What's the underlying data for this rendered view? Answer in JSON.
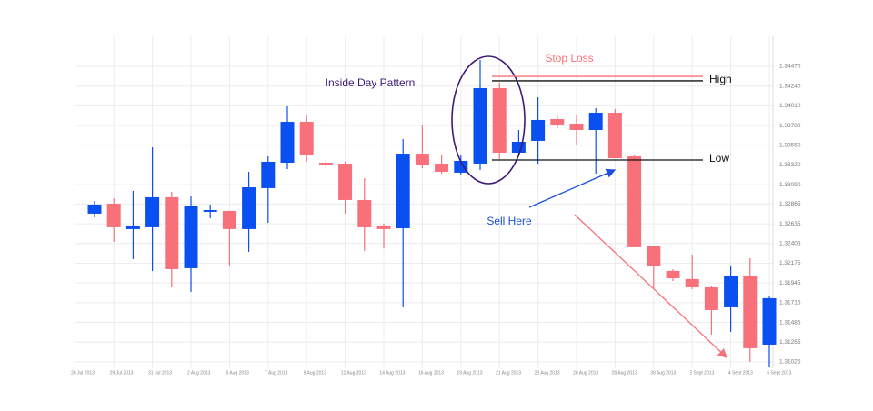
{
  "chart_data": {
    "type": "candlestick",
    "up_color": "#0a4ff0",
    "down_color": "#f7707a",
    "grid": true,
    "ylim": [
      1.3095,
      1.3482
    ],
    "yticks": [
      {
        "value": 1.3447,
        "label": "1.34470"
      },
      {
        "value": 1.3424,
        "label": "1.34240"
      },
      {
        "value": 1.3401,
        "label": "1.34010"
      },
      {
        "value": 1.3378,
        "label": "1.33780"
      },
      {
        "value": 1.3355,
        "label": "1.33550"
      },
      {
        "value": 1.3332,
        "label": "1.33320"
      },
      {
        "value": 1.3309,
        "label": "1.33090"
      },
      {
        "value": 1.32865,
        "label": "1.32865"
      },
      {
        "value": 1.32635,
        "label": "1.32635"
      },
      {
        "value": 1.32405,
        "label": "1.32405"
      },
      {
        "value": 1.32175,
        "label": "1.32175"
      },
      {
        "value": 1.31945,
        "label": "1.31945"
      },
      {
        "value": 1.31715,
        "label": "1.31715"
      },
      {
        "value": 1.31485,
        "label": "1.31485"
      },
      {
        "value": 1.31255,
        "label": "1.31255"
      },
      {
        "value": 1.31025,
        "label": "1.31025"
      }
    ],
    "x_labels": [
      "26 Jul 2013",
      "29 Jul 2013",
      "31 Jul 2013",
      "2 Aug 2013",
      "6 Aug 2013",
      "7 Aug 2013",
      "9 Aug 2013",
      "12 Aug 2013",
      "14 Aug 2013",
      "16 Aug 2013",
      "19 Aug 2013",
      "21 Aug 2013",
      "23 Aug 2013",
      "26 Aug 2013",
      "28 Aug 2013",
      "30 Aug 2013",
      "2 Sept 2013",
      "4 Sept 2013",
      "6 Sept 2013"
    ],
    "candles": [
      {
        "open": 1.32753,
        "high": 1.32901,
        "low": 1.3271,
        "close": 1.32859
      },
      {
        "open": 1.32869,
        "high": 1.32933,
        "low": 1.32424,
        "close": 1.32594
      },
      {
        "open": 1.32573,
        "high": 1.33018,
        "low": 1.32223,
        "close": 1.32615
      },
      {
        "open": 1.32594,
        "high": 1.33527,
        "low": 1.32085,
        "close": 1.32944
      },
      {
        "open": 1.32944,
        "high": 1.33007,
        "low": 1.31894,
        "close": 1.32106
      },
      {
        "open": 1.32117,
        "high": 1.32954,
        "low": 1.31841,
        "close": 1.32838
      },
      {
        "open": 1.32774,
        "high": 1.32859,
        "low": 1.327,
        "close": 1.32795
      },
      {
        "open": 1.32785,
        "high": 1.32785,
        "low": 1.32138,
        "close": 1.32573
      },
      {
        "open": 1.32573,
        "high": 1.3324,
        "low": 1.32308,
        "close": 1.3306
      },
      {
        "open": 1.3305,
        "high": 1.33421,
        "low": 1.32647,
        "close": 1.33357
      },
      {
        "open": 1.33346,
        "high": 1.34004,
        "low": 1.33272,
        "close": 1.33823
      },
      {
        "open": 1.33823,
        "high": 1.33908,
        "low": 1.33357,
        "close": 1.33442
      },
      {
        "open": 1.33346,
        "high": 1.33378,
        "low": 1.33283,
        "close": 1.33315
      },
      {
        "open": 1.33336,
        "high": 1.33357,
        "low": 1.32753,
        "close": 1.32912
      },
      {
        "open": 1.32912,
        "high": 1.33166,
        "low": 1.32318,
        "close": 1.32594
      },
      {
        "open": 1.32615,
        "high": 1.32636,
        "low": 1.3235,
        "close": 1.32573
      },
      {
        "open": 1.32583,
        "high": 1.33622,
        "low": 1.31661,
        "close": 1.33452
      },
      {
        "open": 1.33452,
        "high": 1.33781,
        "low": 1.33283,
        "close": 1.33325
      },
      {
        "open": 1.33336,
        "high": 1.33442,
        "low": 1.33219,
        "close": 1.3324
      },
      {
        "open": 1.3323,
        "high": 1.33442,
        "low": 1.33209,
        "close": 1.33368
      },
      {
        "open": 1.33336,
        "high": 1.34544,
        "low": 1.33262,
        "close": 1.34216
      },
      {
        "open": 1.34216,
        "high": 1.34279,
        "low": 1.33389,
        "close": 1.33463
      },
      {
        "open": 1.33463,
        "high": 1.33728,
        "low": 1.33421,
        "close": 1.3359
      },
      {
        "open": 1.33601,
        "high": 1.3411,
        "low": 1.33336,
        "close": 1.33845
      },
      {
        "open": 1.33855,
        "high": 1.33908,
        "low": 1.33749,
        "close": 1.33792
      },
      {
        "open": 1.33802,
        "high": 1.33898,
        "low": 1.33558,
        "close": 1.33728
      },
      {
        "open": 1.33728,
        "high": 1.33982,
        "low": 1.33219,
        "close": 1.33929
      },
      {
        "open": 1.33929,
        "high": 1.33972,
        "low": 1.33399,
        "close": 1.33399
      },
      {
        "open": 1.33421,
        "high": 1.33442,
        "low": 1.32361,
        "close": 1.32361
      },
      {
        "open": 1.32371,
        "high": 1.32371,
        "low": 1.31873,
        "close": 1.32138
      },
      {
        "open": 1.32085,
        "high": 1.32106,
        "low": 1.31968,
        "close": 1.32
      },
      {
        "open": 1.3199,
        "high": 1.32276,
        "low": 1.31873,
        "close": 1.31894
      },
      {
        "open": 1.31894,
        "high": 1.31905,
        "low": 1.31343,
        "close": 1.31629
      },
      {
        "open": 1.31661,
        "high": 1.32149,
        "low": 1.31375,
        "close": 1.32032
      },
      {
        "open": 1.32032,
        "high": 1.32233,
        "low": 1.31025,
        "close": 1.31184
      },
      {
        "open": 1.31226,
        "high": 1.31799,
        "low": 1.3096,
        "close": 1.31767
      }
    ],
    "levels": [
      {
        "label": "Stop Loss",
        "value": 1.34353,
        "color": "#f7707a"
      },
      {
        "label": "High",
        "value": 1.34301,
        "color": "#111111"
      },
      {
        "label": "Low",
        "value": 1.33378,
        "color": "#111111"
      }
    ],
    "annotations": {
      "pattern": "Inside Day Pattern",
      "entry": "Sell Here"
    }
  }
}
